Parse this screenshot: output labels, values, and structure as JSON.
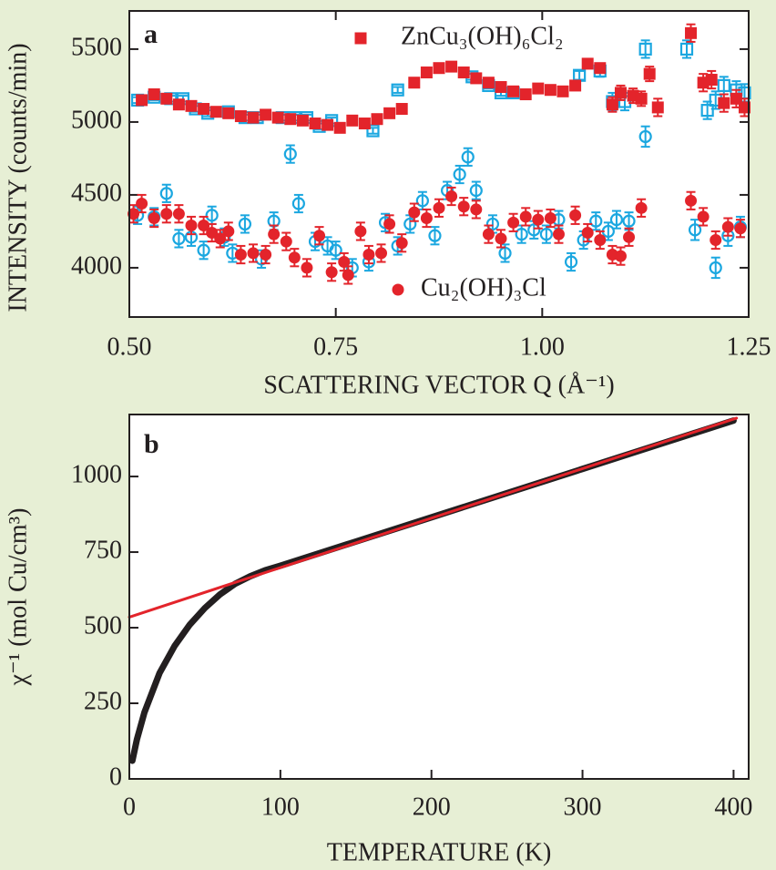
{
  "chart_data": [
    {
      "type": "scatter",
      "label": "a",
      "x_label": "SCATTERING VECTOR Q (Å⁻¹)",
      "y_label": "INTENSITY (counts/min)",
      "xlim": [
        0.5,
        1.25
      ],
      "ylim": [
        3662,
        5762
      ],
      "xticks": [
        {
          "value": 0.5,
          "label": "0.50"
        },
        {
          "value": 0.75,
          "label": "0.75"
        },
        {
          "value": 1.0,
          "label": "1.00"
        },
        {
          "value": 1.25,
          "label": "1.25"
        }
      ],
      "yticks": [
        4000,
        4500,
        5000,
        5500
      ],
      "series": [
        {
          "color": "#1ba7e0",
          "marker": "square",
          "filled": false,
          "x": [
            0.51,
            0.53,
            0.55,
            0.565,
            0.58,
            0.595,
            0.62,
            0.64,
            0.655,
            0.685,
            0.7,
            0.715,
            0.73,
            0.745,
            0.795,
            0.825,
            0.915,
            0.935,
            0.95,
            0.965,
            1.045,
            1.07,
            1.085,
            1.1,
            1.125,
            1.175,
            1.2,
            1.21,
            1.22,
            1.235,
            1.245
          ],
          "values": [
            5150,
            5170,
            5160,
            5160,
            5090,
            5060,
            5070,
            5030,
            5030,
            5030,
            5030,
            5030,
            4970,
            5010,
            4940,
            5220,
            5310,
            5250,
            5200,
            5200,
            5320,
            5350,
            5140,
            5140,
            5500,
            5500,
            5080,
            5150,
            5250,
            5220,
            5200
          ],
          "errors": [
            20,
            20,
            20,
            20,
            20,
            20,
            20,
            20,
            20,
            20,
            20,
            20,
            20,
            20,
            20,
            20,
            20,
            20,
            20,
            20,
            30,
            40,
            60,
            60,
            60,
            60,
            60,
            60,
            60,
            60,
            60
          ]
        },
        {
          "name": "ZnCu₃(OH)₆Cl₂",
          "color": "#e3242b",
          "marker": "square",
          "filled": true,
          "x": [
            0.515,
            0.53,
            0.545,
            0.56,
            0.575,
            0.59,
            0.605,
            0.62,
            0.635,
            0.65,
            0.665,
            0.68,
            0.695,
            0.71,
            0.725,
            0.74,
            0.755,
            0.77,
            0.785,
            0.8,
            0.815,
            0.83,
            0.845,
            0.86,
            0.875,
            0.89,
            0.905,
            0.92,
            0.935,
            0.95,
            0.965,
            0.98,
            0.995,
            1.01,
            1.025,
            1.04,
            1.055,
            1.07,
            1.085,
            1.095,
            1.11,
            1.12,
            1.13,
            1.14,
            1.18,
            1.195,
            1.205,
            1.22,
            1.235,
            1.245
          ],
          "values": [
            5150,
            5190,
            5160,
            5120,
            5110,
            5090,
            5070,
            5060,
            5040,
            5030,
            5050,
            5030,
            5020,
            5010,
            4990,
            4980,
            4960,
            5010,
            4990,
            5020,
            5060,
            5090,
            5270,
            5340,
            5370,
            5380,
            5340,
            5300,
            5270,
            5240,
            5210,
            5190,
            5230,
            5220,
            5210,
            5250,
            5400,
            5370,
            5120,
            5200,
            5180,
            5160,
            5330,
            5100,
            5610,
            5270,
            5290,
            5130,
            5160,
            5100
          ],
          "errors": [
            15,
            15,
            15,
            15,
            15,
            15,
            15,
            15,
            15,
            15,
            15,
            15,
            15,
            15,
            15,
            15,
            15,
            15,
            15,
            15,
            15,
            15,
            15,
            15,
            15,
            15,
            15,
            15,
            15,
            15,
            15,
            15,
            15,
            15,
            15,
            15,
            20,
            25,
            50,
            50,
            50,
            50,
            50,
            60,
            60,
            60,
            60,
            60,
            60,
            60
          ]
        },
        {
          "color": "#1ba7e0",
          "marker": "circle",
          "filled": false,
          "x": [
            0.51,
            0.53,
            0.545,
            0.56,
            0.575,
            0.59,
            0.6,
            0.615,
            0.625,
            0.64,
            0.66,
            0.675,
            0.695,
            0.705,
            0.725,
            0.74,
            0.75,
            0.77,
            0.79,
            0.81,
            0.825,
            0.84,
            0.855,
            0.87,
            0.885,
            0.9,
            0.91,
            0.92,
            0.94,
            0.955,
            0.975,
            0.99,
            1.005,
            1.02,
            1.035,
            1.05,
            1.065,
            1.08,
            1.09,
            1.105,
            1.125,
            1.185,
            1.21,
            1.225,
            1.24
          ],
          "values": [
            4360,
            4350,
            4510,
            4200,
            4210,
            4120,
            4360,
            4210,
            4100,
            4300,
            4060,
            4320,
            4780,
            4440,
            4180,
            4150,
            4120,
            4000,
            4040,
            4310,
            4150,
            4300,
            4460,
            4220,
            4530,
            4640,
            4760,
            4530,
            4300,
            4100,
            4230,
            4260,
            4230,
            4330,
            4040,
            4190,
            4320,
            4250,
            4330,
            4320,
            4900,
            4260,
            4000,
            4220,
            4280
          ],
          "errors": [
            60,
            60,
            60,
            60,
            60,
            60,
            60,
            60,
            60,
            60,
            60,
            60,
            60,
            60,
            60,
            60,
            60,
            60,
            60,
            60,
            60,
            60,
            60,
            60,
            60,
            60,
            60,
            60,
            60,
            60,
            60,
            60,
            60,
            60,
            60,
            60,
            60,
            60,
            60,
            60,
            70,
            70,
            70,
            70,
            70
          ]
        },
        {
          "name": "Cu₂(OH)₃Cl",
          "color": "#e3242b",
          "marker": "circle",
          "filled": true,
          "x": [
            0.505,
            0.515,
            0.53,
            0.545,
            0.56,
            0.575,
            0.59,
            0.6,
            0.61,
            0.62,
            0.635,
            0.65,
            0.665,
            0.675,
            0.69,
            0.7,
            0.715,
            0.73,
            0.745,
            0.76,
            0.765,
            0.78,
            0.79,
            0.805,
            0.815,
            0.83,
            0.845,
            0.86,
            0.875,
            0.89,
            0.905,
            0.92,
            0.935,
            0.95,
            0.965,
            0.98,
            0.995,
            1.01,
            1.02,
            1.04,
            1.055,
            1.07,
            1.085,
            1.095,
            1.105,
            1.12,
            1.18,
            1.195,
            1.21,
            1.225,
            1.24
          ],
          "values": [
            4370,
            4440,
            4340,
            4370,
            4370,
            4290,
            4290,
            4240,
            4200,
            4250,
            4090,
            4100,
            4090,
            4230,
            4180,
            4070,
            4000,
            4220,
            3970,
            4040,
            3950,
            4250,
            4090,
            4100,
            4300,
            4170,
            4380,
            4340,
            4410,
            4490,
            4420,
            4400,
            4230,
            4200,
            4310,
            4350,
            4330,
            4340,
            4230,
            4360,
            4240,
            4190,
            4090,
            4080,
            4210,
            4410,
            4460,
            4350,
            4190,
            4280,
            4270
          ],
          "errors": [
            60,
            60,
            60,
            60,
            60,
            60,
            60,
            60,
            60,
            60,
            60,
            60,
            60,
            60,
            60,
            60,
            60,
            60,
            60,
            60,
            60,
            60,
            60,
            60,
            60,
            60,
            60,
            60,
            60,
            60,
            60,
            60,
            60,
            60,
            60,
            60,
            60,
            60,
            60,
            60,
            60,
            60,
            60,
            60,
            60,
            60,
            60,
            60,
            60,
            60,
            60
          ]
        }
      ]
    },
    {
      "type": "line",
      "label": "b",
      "x_label": "TEMPERATURE (K)",
      "y_label": "χ⁻¹ (mol Cu/cm³)",
      "xlim": [
        0,
        410
      ],
      "ylim": [
        0,
        1205
      ],
      "xticks": [
        0,
        100,
        200,
        300,
        400
      ],
      "yticks": [
        0,
        250,
        500,
        750,
        1000
      ],
      "series": [
        {
          "color": "#231f20",
          "width": 7,
          "x": [
            2,
            5,
            10,
            20,
            30,
            40,
            50,
            60,
            70,
            80,
            90,
            100,
            150,
            200,
            250,
            300,
            350,
            400
          ],
          "values": [
            60,
            130,
            220,
            350,
            440,
            510,
            565,
            610,
            645,
            670,
            690,
            705,
            785,
            865,
            945,
            1025,
            1105,
            1185
          ]
        },
        {
          "color": "#e3242b",
          "width": 3,
          "x": [
            0,
            402
          ],
          "values": [
            535,
            1193
          ]
        }
      ]
    }
  ]
}
